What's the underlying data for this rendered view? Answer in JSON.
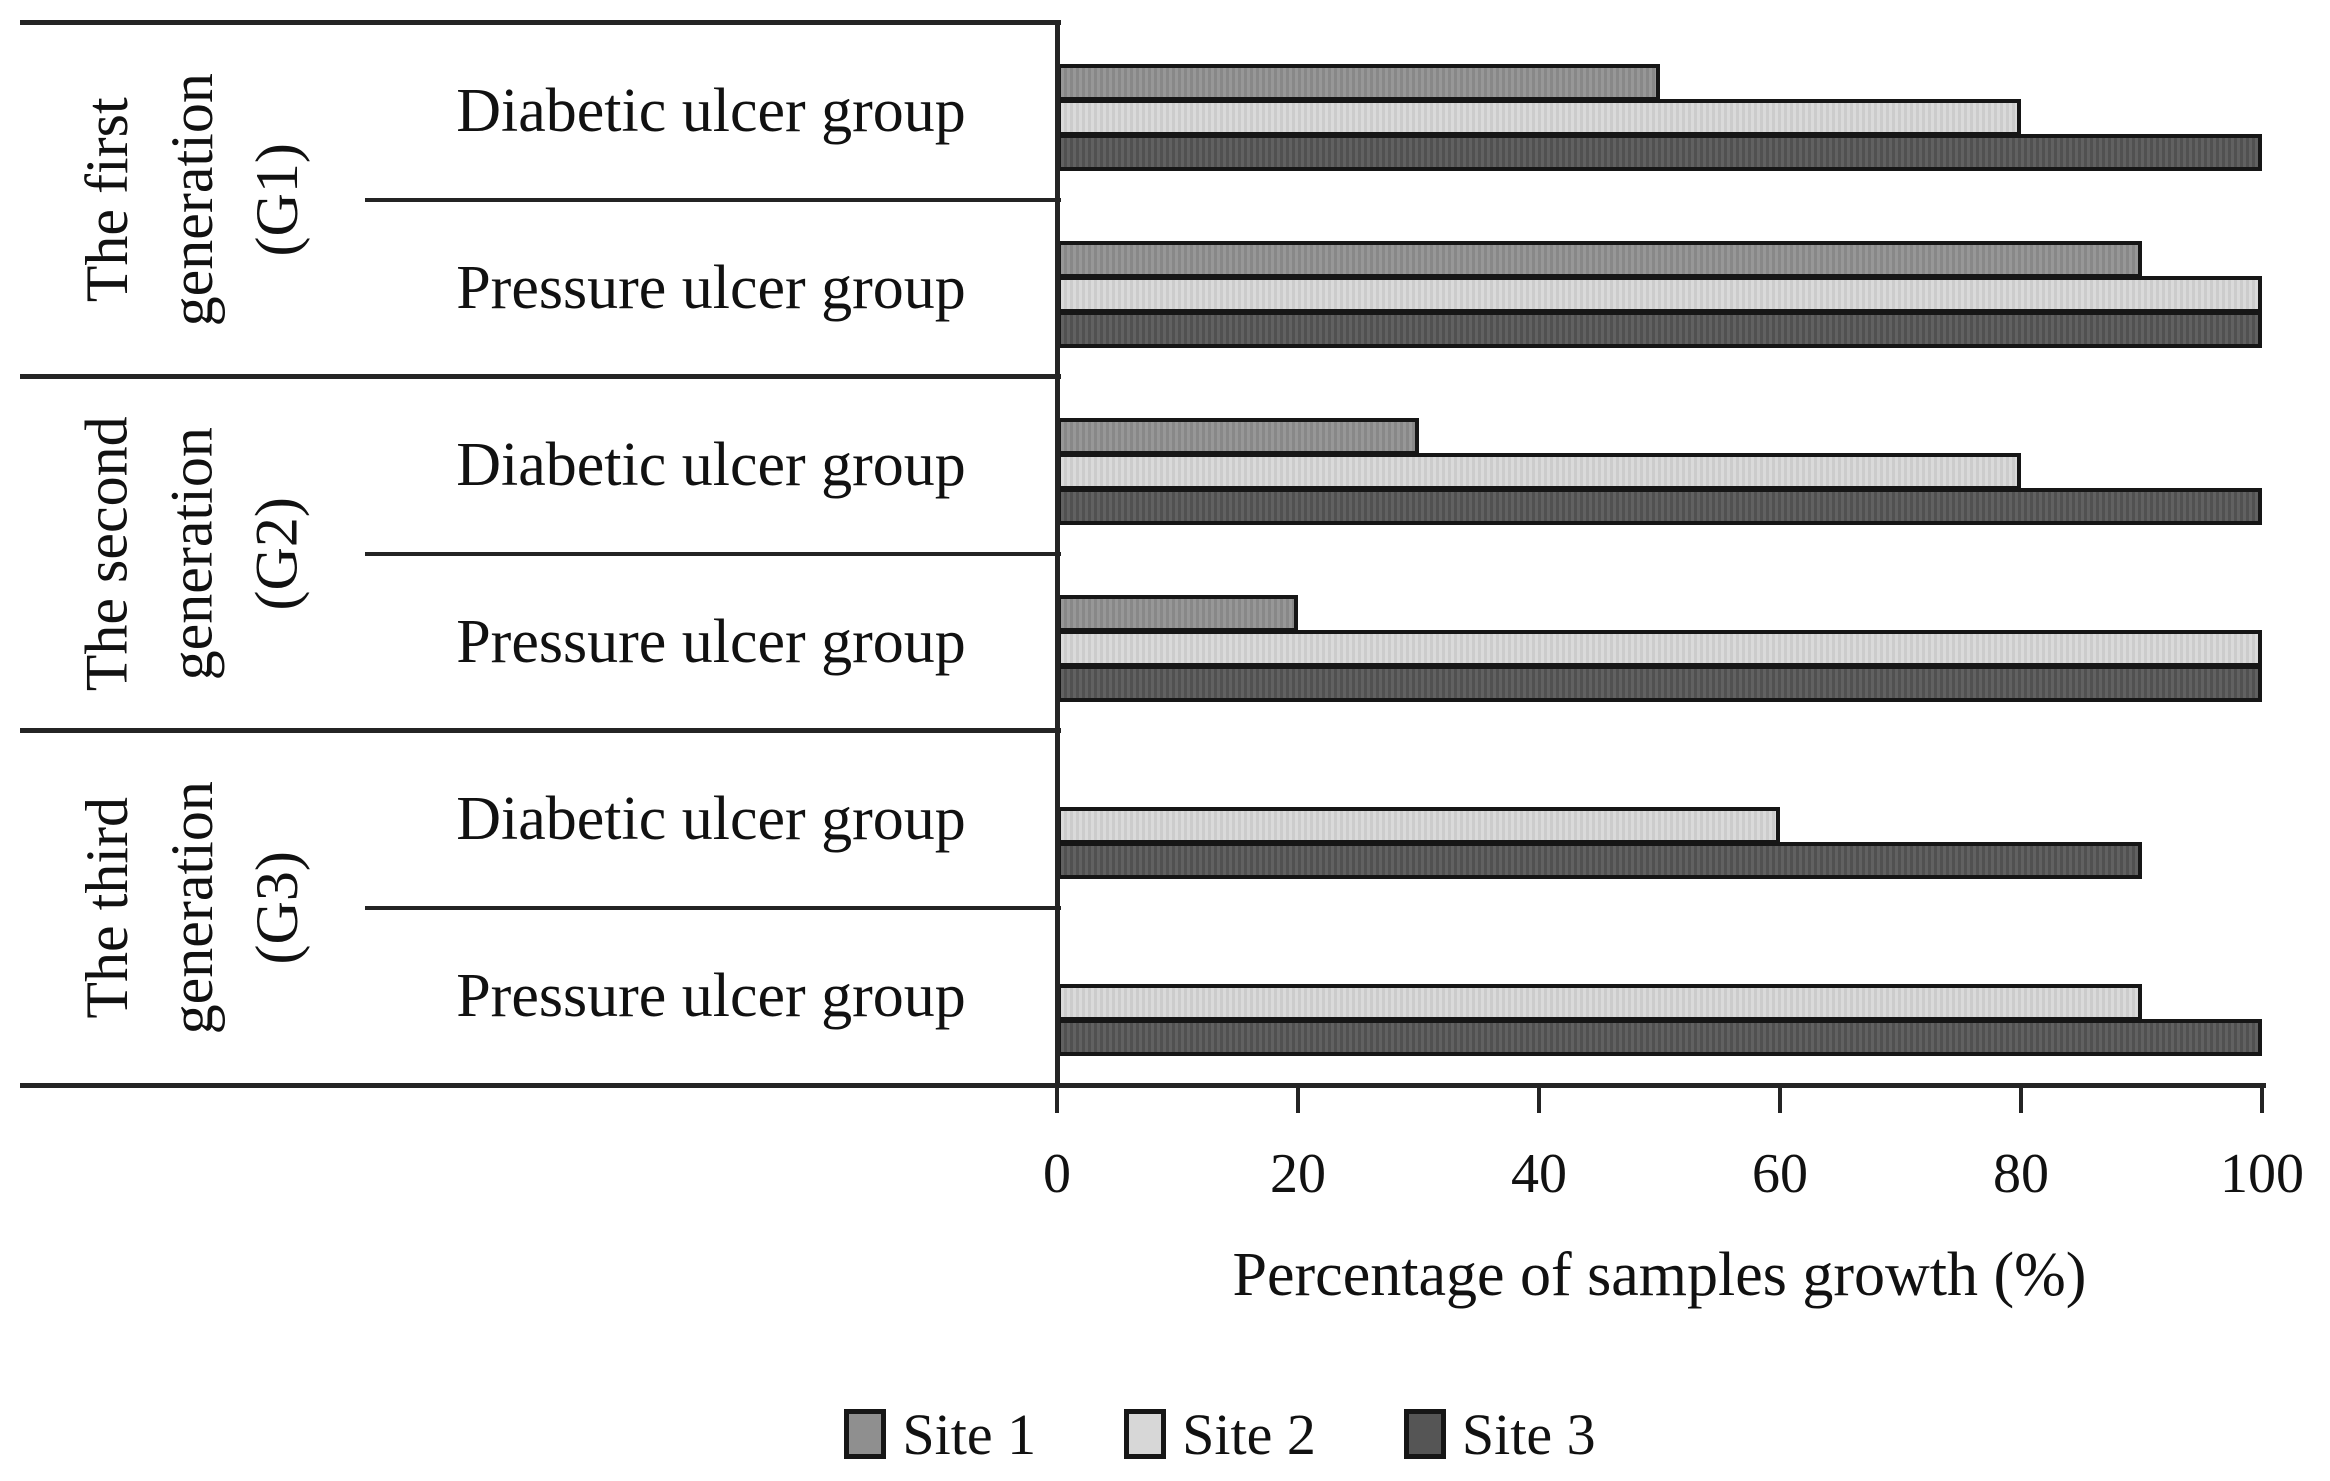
{
  "figure": {
    "background": "#ffffff",
    "text_color": "#111111",
    "line_color": "#242424"
  },
  "chart_data": {
    "type": "bar",
    "orientation": "horizontal",
    "title": "",
    "xlabel": "Percentage of samples growth (%)",
    "ylabel": "",
    "xlim": [
      0,
      100
    ],
    "x_ticks": [
      0,
      20,
      40,
      60,
      80,
      100
    ],
    "grid": false,
    "legend_position": "bottom-center",
    "bar_border_color": "#161616",
    "series": [
      {
        "name": "Site 1",
        "color": "#8f8f8f"
      },
      {
        "name": "Site 2",
        "color": "#d7d7d7"
      },
      {
        "name": "Site 3",
        "color": "#555555"
      }
    ],
    "groups": [
      {
        "generation_label": "The first generation (G1)",
        "generation_label_lines": [
          "The first",
          "generation",
          "(G1)"
        ],
        "rows": [
          {
            "label": "Diabetic ulcer group",
            "values": [
              50,
              80,
              100
            ]
          },
          {
            "label": "Pressure ulcer group",
            "values": [
              90,
              100,
              100
            ]
          }
        ]
      },
      {
        "generation_label": "The second generation (G2)",
        "generation_label_lines": [
          "The second",
          "generation",
          "(G2)"
        ],
        "rows": [
          {
            "label": "Diabetic ulcer group",
            "values": [
              30,
              80,
              100
            ]
          },
          {
            "label": "Pressure ulcer group",
            "values": [
              20,
              100,
              100
            ]
          }
        ]
      },
      {
        "generation_label": "The third generation (G3)",
        "generation_label_lines": [
          "The third",
          "generation",
          "(G3)"
        ],
        "rows": [
          {
            "label": "Diabetic ulcer group",
            "values": [
              0,
              60,
              90
            ]
          },
          {
            "label": "Pressure ulcer group",
            "values": [
              0,
              90,
              100
            ]
          }
        ]
      }
    ],
    "legend": [
      "Site 1",
      "Site 2",
      "Site 3"
    ]
  }
}
